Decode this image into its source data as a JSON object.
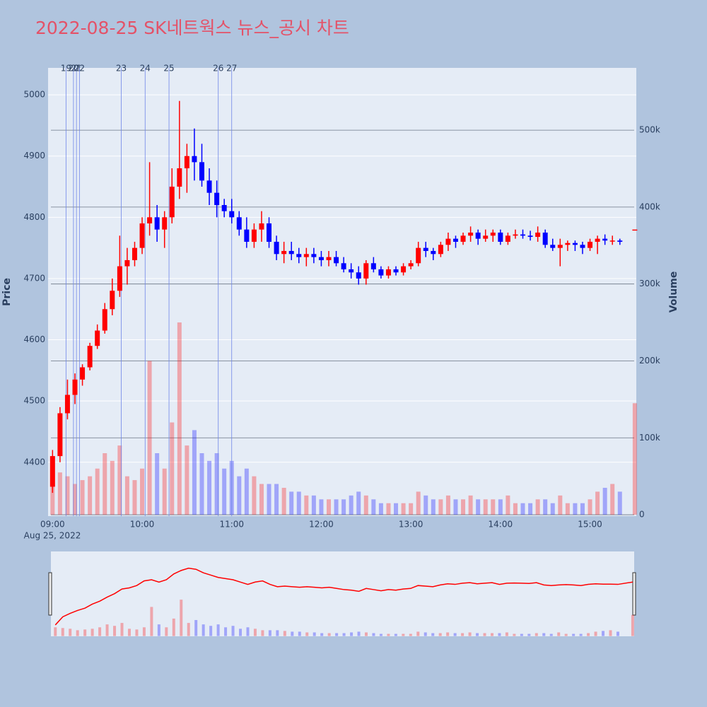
{
  "chart_data": {
    "type": "candlestick",
    "title": "2022-08-25 SK네트웍스 뉴스_공시 차트",
    "y_title": "Price",
    "y2_title": "Volume",
    "x_date_label": "Aug 25, 2022",
    "increasing_color": "#ff0000",
    "decreasing_color": "#0000ff",
    "x": [
      "09:00",
      "09:05",
      "09:10",
      "09:15",
      "09:20",
      "09:25",
      "09:30",
      "09:35",
      "09:40",
      "09:45",
      "09:50",
      "09:55",
      "10:00",
      "10:05",
      "10:10",
      "10:15",
      "10:20",
      "10:25",
      "10:30",
      "10:35",
      "10:40",
      "10:45",
      "10:50",
      "10:55",
      "11:00",
      "11:05",
      "11:10",
      "11:15",
      "11:20",
      "11:25",
      "11:30",
      "11:35",
      "11:40",
      "11:45",
      "11:50",
      "11:55",
      "12:00",
      "12:05",
      "12:10",
      "12:15",
      "12:20",
      "12:25",
      "12:30",
      "12:35",
      "12:40",
      "12:45",
      "12:50",
      "12:55",
      "13:00",
      "13:05",
      "13:10",
      "13:15",
      "13:20",
      "13:25",
      "13:30",
      "13:35",
      "13:40",
      "13:45",
      "13:50",
      "13:55",
      "14:00",
      "14:05",
      "14:10",
      "14:15",
      "14:20",
      "14:25",
      "14:30",
      "14:35",
      "14:40",
      "14:45",
      "14:50",
      "14:55",
      "15:00",
      "15:05",
      "15:10",
      "15:15",
      "15:20",
      "15:30"
    ],
    "open": [
      4360,
      4410,
      4480,
      4510,
      4535,
      4555,
      4590,
      4615,
      4650,
      4680,
      4720,
      4730,
      4750,
      4790,
      4800,
      4780,
      4800,
      4850,
      4880,
      4900,
      4890,
      4860,
      4840,
      4820,
      4810,
      4800,
      4780,
      4760,
      4780,
      4790,
      4760,
      4740,
      4745,
      4740,
      4735,
      4740,
      4735,
      4730,
      4735,
      4725,
      4715,
      4710,
      4700,
      4725,
      4715,
      4705,
      4715,
      4710,
      4720,
      4725,
      4750,
      4745,
      4740,
      4755,
      4765,
      4760,
      4770,
      4775,
      4765,
      4770,
      4775,
      4760,
      4770,
      4772,
      4770,
      4768,
      4775,
      4755,
      4750,
      4755,
      4758,
      4755,
      4750,
      4760,
      4765,
      4762,
      4762,
      4780
    ],
    "high": [
      4420,
      4490,
      4535,
      4545,
      4560,
      4595,
      4625,
      4660,
      4700,
      4770,
      4750,
      4760,
      4800,
      4890,
      4820,
      4810,
      4880,
      4990,
      4920,
      4945,
      4920,
      4880,
      4860,
      4830,
      4830,
      4810,
      4800,
      4790,
      4810,
      4800,
      4770,
      4760,
      4760,
      4750,
      4750,
      4750,
      4745,
      4745,
      4745,
      4735,
      4725,
      4720,
      4730,
      4735,
      4720,
      4720,
      4720,
      4725,
      4730,
      4760,
      4760,
      4750,
      4760,
      4775,
      4770,
      4775,
      4785,
      4780,
      4780,
      4780,
      4780,
      4775,
      4780,
      4780,
      4778,
      4785,
      4780,
      4765,
      4765,
      4762,
      4762,
      4760,
      4765,
      4770,
      4772,
      4770,
      4765,
      4780
    ],
    "low": [
      4350,
      4400,
      4470,
      4495,
      4525,
      4550,
      4585,
      4610,
      4640,
      4670,
      4690,
      4720,
      4740,
      4770,
      4760,
      4750,
      4790,
      4830,
      4840,
      4860,
      4850,
      4820,
      4800,
      4800,
      4790,
      4770,
      4750,
      4750,
      4760,
      4750,
      4730,
      4725,
      4730,
      4725,
      4720,
      4725,
      4720,
      4720,
      4720,
      4710,
      4700,
      4690,
      4690,
      4710,
      4700,
      4700,
      4705,
      4705,
      4715,
      4720,
      4735,
      4730,
      4735,
      4745,
      4750,
      4755,
      4760,
      4755,
      4760,
      4760,
      4755,
      4755,
      4765,
      4765,
      4762,
      4760,
      4750,
      4745,
      4720,
      4745,
      4745,
      4740,
      4745,
      4740,
      4755,
      4755,
      4755,
      4780
    ],
    "close": [
      4410,
      4480,
      4510,
      4535,
      4555,
      4590,
      4615,
      4650,
      4680,
      4720,
      4730,
      4750,
      4790,
      4800,
      4780,
      4800,
      4850,
      4880,
      4900,
      4890,
      4860,
      4840,
      4820,
      4810,
      4800,
      4780,
      4760,
      4780,
      4790,
      4760,
      4740,
      4745,
      4740,
      4735,
      4740,
      4735,
      4730,
      4735,
      4725,
      4715,
      4710,
      4700,
      4725,
      4715,
      4705,
      4715,
      4710,
      4720,
      4725,
      4750,
      4745,
      4740,
      4755,
      4765,
      4760,
      4770,
      4775,
      4765,
      4770,
      4775,
      4760,
      4770,
      4772,
      4770,
      4768,
      4775,
      4755,
      4750,
      4755,
      4758,
      4755,
      4750,
      4760,
      4765,
      4762,
      4762,
      4760,
      4780
    ],
    "volume": [
      60000,
      55000,
      50000,
      40000,
      45000,
      50000,
      60000,
      80000,
      70000,
      90000,
      50000,
      45000,
      60000,
      200000,
      80000,
      60000,
      120000,
      250000,
      90000,
      110000,
      80000,
      70000,
      80000,
      60000,
      70000,
      50000,
      60000,
      50000,
      40000,
      40000,
      40000,
      35000,
      30000,
      30000,
      25000,
      25000,
      20000,
      20000,
      20000,
      20000,
      25000,
      30000,
      25000,
      20000,
      15000,
      15000,
      15000,
      15000,
      15000,
      30000,
      25000,
      20000,
      20000,
      25000,
      20000,
      20000,
      25000,
      20000,
      20000,
      20000,
      20000,
      25000,
      15000,
      15000,
      15000,
      20000,
      20000,
      15000,
      25000,
      15000,
      15000,
      15000,
      20000,
      30000,
      35000,
      40000,
      30000,
      145000
    ],
    "xlim": [
      "08:57",
      "15:31"
    ],
    "xticks": [
      "09:00",
      "10:00",
      "11:00",
      "12:00",
      "13:00",
      "14:00",
      "15:00"
    ],
    "ylim": [
      4312,
      5044
    ],
    "yticks": [
      4400,
      4500,
      4600,
      4700,
      4800,
      4900,
      5000
    ],
    "y2lim": [
      -1800,
      581000
    ],
    "y2ticks": [
      0,
      {
        "value": 100000,
        "label": "100k"
      },
      {
        "value": 200000,
        "label": "200k"
      },
      {
        "value": 300000,
        "label": "300k"
      },
      {
        "value": 400000,
        "label": "400k"
      },
      {
        "value": 500000,
        "label": "500k"
      }
    ],
    "markers": [
      {
        "label": "19",
        "x": "09:09"
      },
      {
        "label": "20",
        "x": "09:14"
      },
      {
        "label": "21",
        "x": "09:16"
      },
      {
        "label": "22",
        "x": "09:18"
      },
      {
        "label": "23",
        "x": "09:46"
      },
      {
        "label": "24",
        "x": "10:02"
      },
      {
        "label": "25",
        "x": "10:18"
      },
      {
        "label": "26",
        "x": "10:51"
      },
      {
        "label": "27",
        "x": "11:00"
      }
    ]
  }
}
